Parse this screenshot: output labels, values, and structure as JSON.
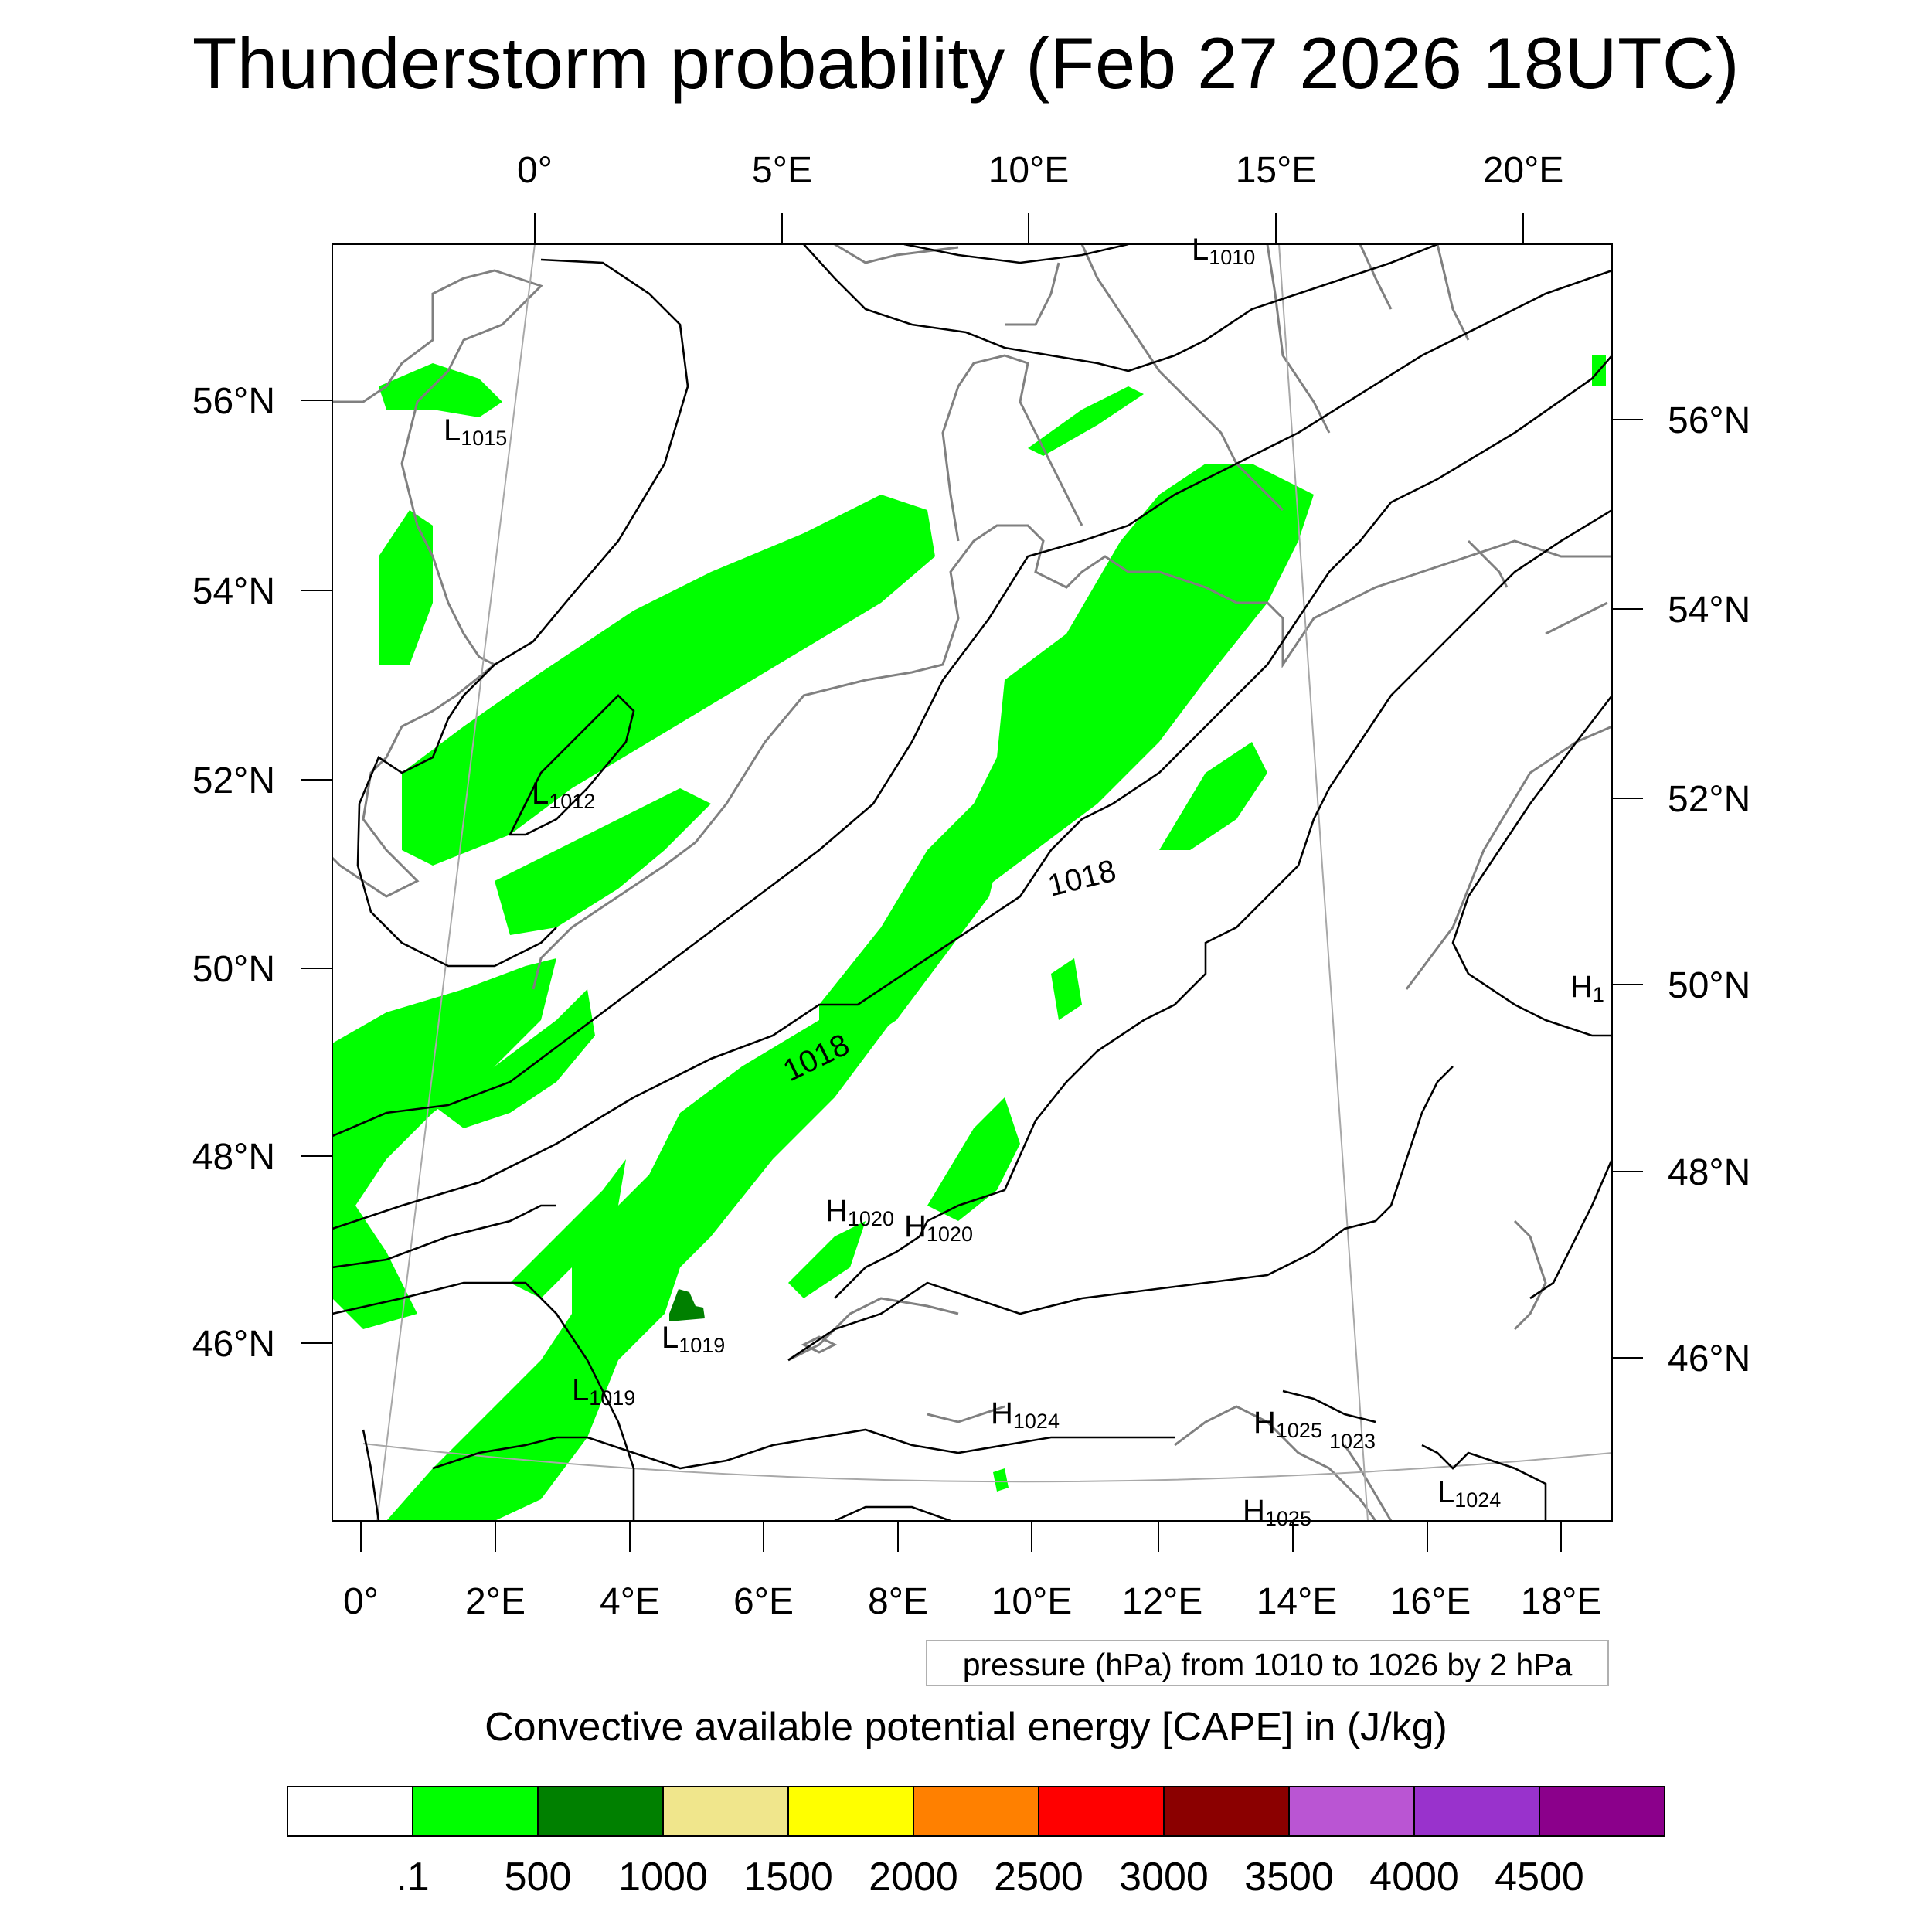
{
  "title": "Thunderstorm probability (Feb 27 2026 18UTC)",
  "axes": {
    "top_lon_labels": [
      "0°",
      "5°E",
      "10°E",
      "15°E",
      "20°E"
    ],
    "bottom_lon_labels": [
      "0°",
      "2°E",
      "4°E",
      "6°E",
      "8°E",
      "10°E",
      "12°E",
      "14°E",
      "16°E",
      "18°E"
    ],
    "left_lat_labels": [
      "56°N",
      "54°N",
      "52°N",
      "50°N",
      "48°N",
      "46°N"
    ],
    "right_lat_labels": [
      "56°N",
      "54°N",
      "52°N",
      "50°N",
      "48°N",
      "46°N"
    ]
  },
  "pressure_centers": [
    {
      "type": "L",
      "value": "1010"
    },
    {
      "type": "L",
      "value": "1015"
    },
    {
      "type": "L",
      "value": "1012"
    },
    {
      "type": "L",
      "value": "1019"
    },
    {
      "type": "L",
      "value": "1019"
    },
    {
      "type": "H",
      "value": "1020"
    },
    {
      "type": "H",
      "value": "1020"
    },
    {
      "type": "H",
      "value": "1024"
    },
    {
      "type": "H",
      "value": "1025"
    },
    {
      "type": "",
      "value": "1023"
    },
    {
      "type": "L",
      "value": "1024"
    },
    {
      "type": "H",
      "value": "1025"
    },
    {
      "type": "H",
      "value": "1"
    }
  ],
  "isobar_labels": [
    "1018",
    "1018"
  ],
  "contour_note": "pressure (hPa) from 1010 to 1026 by 2 hPa",
  "colorbar": {
    "title": "Convective available potential energy [CAPE] in (J/kg)",
    "levels": [
      ".1",
      "500",
      "1000",
      "1500",
      "2000",
      "2500",
      "3000",
      "3500",
      "4000",
      "4500"
    ],
    "colors": [
      "#ffffff",
      "#00ff00",
      "#008000",
      "#f0e68c",
      "#ffff00",
      "#ff8000",
      "#ff0000",
      "#8b0000",
      "#ba55d3",
      "#9932cc",
      "#8b008b"
    ]
  },
  "colors": {
    "cape_low": "#00ff00",
    "cape_mid": "#008000",
    "coastline": "#808080",
    "isobar": "#000000",
    "graticule": "#a8a8a8"
  }
}
